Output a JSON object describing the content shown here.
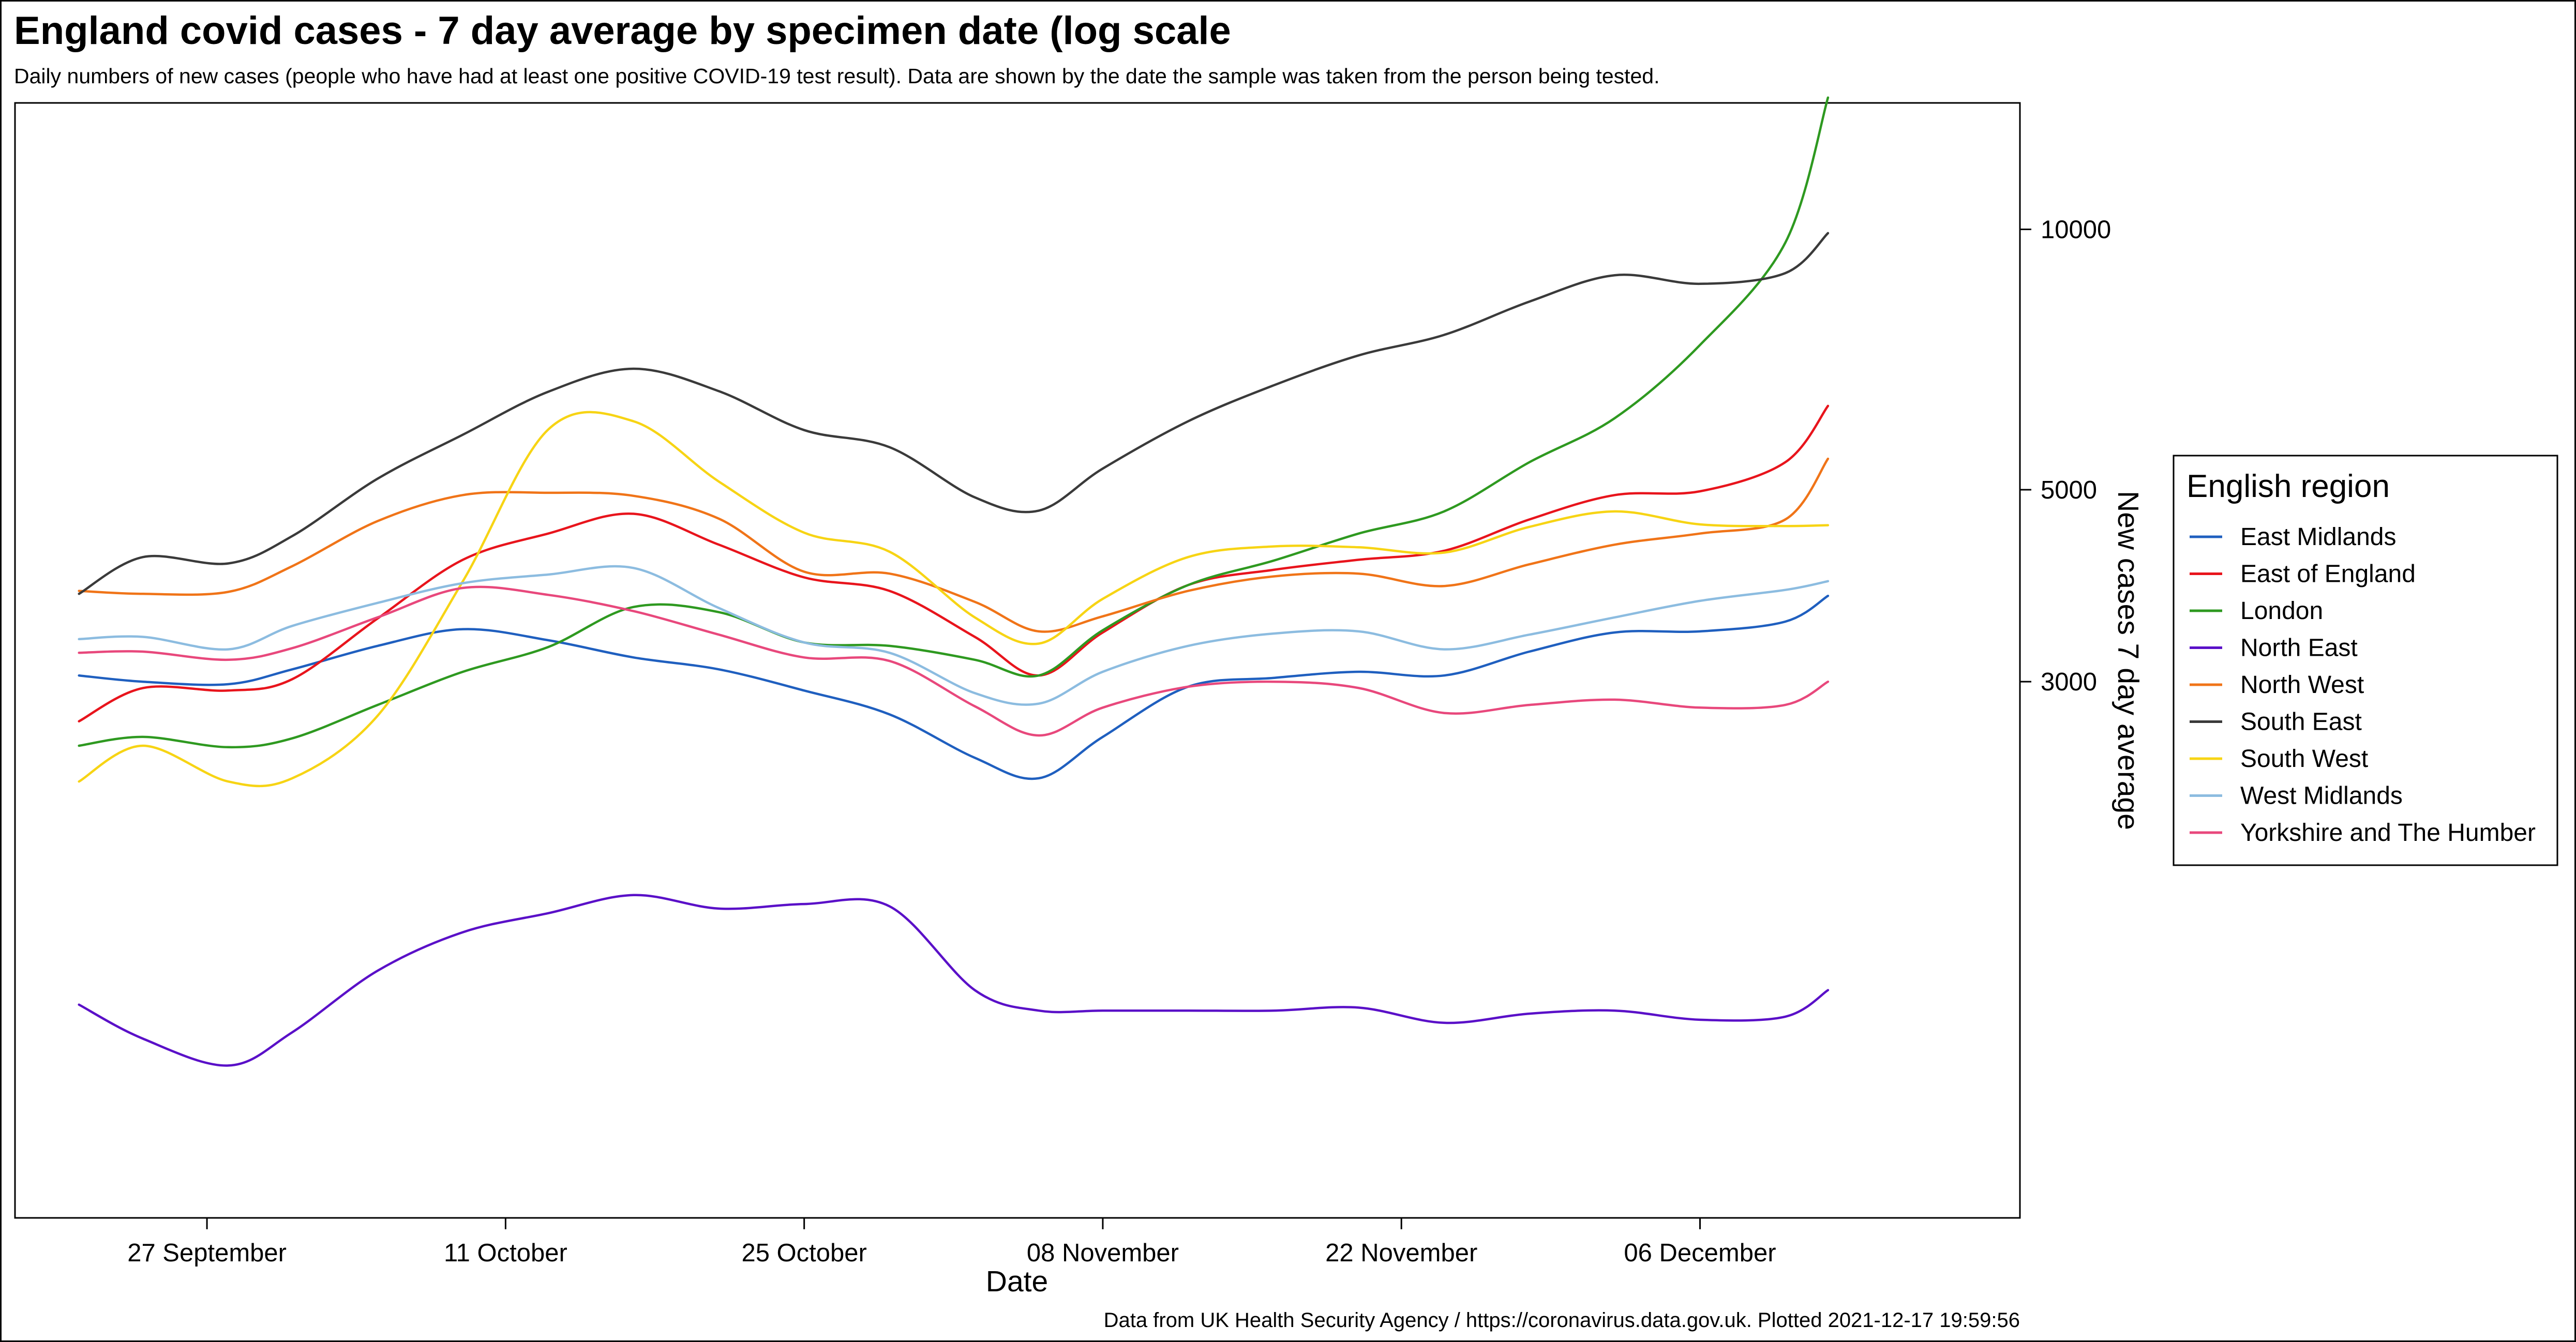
{
  "chart_data": {
    "type": "line",
    "title": "England covid cases - 7 day average by specimen date (log scale",
    "subtitle": "Daily numbers of new cases (people who have had at least one positive COVID-19 test result). Data are shown by the date the sample was taken from the person being tested.",
    "xlabel": "Date",
    "ylabel": "New cases 7 day average",
    "y_scale": "log",
    "y_axis_position": "right",
    "ylim": [
      720,
      14000
    ],
    "xlim": [
      "2021-09-18",
      "2021-12-21"
    ],
    "x_ticks": [
      {
        "date": "2021-09-27",
        "label": "27 September"
      },
      {
        "date": "2021-10-11",
        "label": "11 October"
      },
      {
        "date": "2021-10-25",
        "label": "25 October"
      },
      {
        "date": "2021-11-08",
        "label": "08 November"
      },
      {
        "date": "2021-11-22",
        "label": "22 November"
      },
      {
        "date": "2021-12-06",
        "label": "06 December"
      }
    ],
    "y_ticks": [
      3000,
      5000,
      10000
    ],
    "grid": false,
    "legend": {
      "title": "English region",
      "position": "right"
    },
    "x": [
      "2021-09-21",
      "2021-09-24",
      "2021-09-28",
      "2021-10-01",
      "2021-10-05",
      "2021-10-09",
      "2021-10-13",
      "2021-10-17",
      "2021-10-21",
      "2021-10-25",
      "2021-10-29",
      "2021-11-02",
      "2021-11-05",
      "2021-11-08",
      "2021-11-12",
      "2021-11-16",
      "2021-11-20",
      "2021-11-24",
      "2021-11-28",
      "2021-12-02",
      "2021-12-06",
      "2021-12-10",
      "2021-12-12"
    ],
    "series": [
      {
        "name": "East Midlands",
        "color": "#1f5fbf",
        "values": [
          3050,
          3000,
          2980,
          3100,
          3300,
          3450,
          3350,
          3200,
          3100,
          2930,
          2750,
          2450,
          2320,
          2590,
          2960,
          3030,
          3080,
          3050,
          3250,
          3420,
          3430,
          3520,
          3770
        ]
      },
      {
        "name": "East of England",
        "color": "#e8141c",
        "values": [
          2700,
          2950,
          2930,
          3020,
          3550,
          4150,
          4450,
          4690,
          4320,
          3960,
          3820,
          3380,
          3050,
          3420,
          3880,
          4040,
          4150,
          4250,
          4620,
          4930,
          4980,
          5380,
          6250
        ]
      },
      {
        "name": "London",
        "color": "#2e9920",
        "values": [
          2530,
          2590,
          2520,
          2580,
          2820,
          3080,
          3290,
          3660,
          3610,
          3330,
          3300,
          3180,
          3050,
          3440,
          3880,
          4140,
          4450,
          4720,
          5380,
          6050,
          7350,
          9650,
          14200
        ]
      },
      {
        "name": "North East",
        "color": "#5a10c8",
        "values": [
          1270,
          1160,
          1080,
          1180,
          1390,
          1540,
          1620,
          1700,
          1640,
          1660,
          1650,
          1320,
          1250,
          1250,
          1250,
          1250,
          1260,
          1210,
          1240,
          1250,
          1220,
          1230,
          1320
        ]
      },
      {
        "name": "North West",
        "color": "#f07418",
        "values": [
          3820,
          3790,
          3810,
          4080,
          4600,
          4930,
          4960,
          4920,
          4630,
          4020,
          4000,
          3710,
          3430,
          3570,
          3820,
          3970,
          4000,
          3870,
          4100,
          4320,
          4450,
          4620,
          5430
        ]
      },
      {
        "name": "South East",
        "color": "#3a3a3a",
        "values": [
          3790,
          4180,
          4110,
          4420,
          5150,
          5790,
          6490,
          6900,
          6500,
          5860,
          5600,
          4900,
          4730,
          5290,
          6000,
          6600,
          7150,
          7550,
          8250,
          8850,
          8650,
          8900,
          9900
        ]
      },
      {
        "name": "South West",
        "color": "#f7d414",
        "values": [
          2300,
          2530,
          2300,
          2320,
          2740,
          3920,
          5870,
          6000,
          5110,
          4460,
          4240,
          3560,
          3320,
          3740,
          4180,
          4300,
          4290,
          4230,
          4530,
          4720,
          4560,
          4540,
          4550
        ]
      },
      {
        "name": "West Midlands",
        "color": "#8cbce0",
        "values": [
          3360,
          3380,
          3270,
          3480,
          3700,
          3900,
          3990,
          4060,
          3650,
          3330,
          3240,
          2910,
          2830,
          3080,
          3300,
          3410,
          3430,
          3270,
          3400,
          3560,
          3720,
          3830,
          3920
        ]
      },
      {
        "name": "Yorkshire and The Humber",
        "color": "#e8487c",
        "values": [
          3240,
          3250,
          3180,
          3280,
          3560,
          3850,
          3780,
          3620,
          3400,
          3200,
          3170,
          2810,
          2600,
          2800,
          2960,
          3000,
          2950,
          2760,
          2820,
          2860,
          2800,
          2820,
          3000
        ]
      }
    ],
    "caption": "Data from UK Health Security Agency / https://coronavirus.data.gov.uk. Plotted 2021-12-17 19:59:56"
  }
}
